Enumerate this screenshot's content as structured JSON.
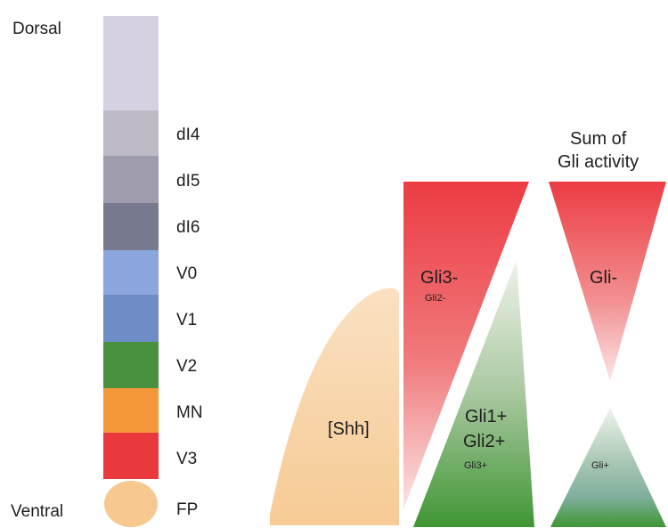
{
  "axis": {
    "dorsal_label": "Dorsal",
    "ventral_label": "Ventral"
  },
  "domains": [
    {
      "label": "",
      "color": "#d6d1e2"
    },
    {
      "label": "dI4",
      "color": "#bebbc7"
    },
    {
      "label": "dI5",
      "color": "#9f9cae"
    },
    {
      "label": "dI6",
      "color": "#77798e"
    },
    {
      "label": "V0",
      "color": "#8aa6dc"
    },
    {
      "label": "V1",
      "color": "#6f8cc6"
    },
    {
      "label": "V2",
      "color": "#49913f"
    },
    {
      "label": "MN",
      "color": "#f4983a"
    },
    {
      "label": "V3",
      "color": "#e9393d"
    },
    {
      "label": "FP",
      "color": "#f5c98f"
    }
  ],
  "gradients": {
    "shh": {
      "label": "[Shh]",
      "color": "#f6c88f"
    },
    "gli_repressor": {
      "label_main": "Gli3-",
      "label_sub": "Gli2-",
      "color": "#ec3c43"
    },
    "gli_activator": {
      "label_1": "Gli1+",
      "label_2": "Gli2+",
      "label_sub": "Gli3+",
      "color": "#4f9a3c"
    },
    "sum": {
      "title_line1": "Sum of",
      "title_line2": "Gli activity",
      "negative_label": "Gli-",
      "positive_label": "Gli+",
      "negative_color": "#ec3c43",
      "positive_color": "#4f9a3c"
    }
  }
}
